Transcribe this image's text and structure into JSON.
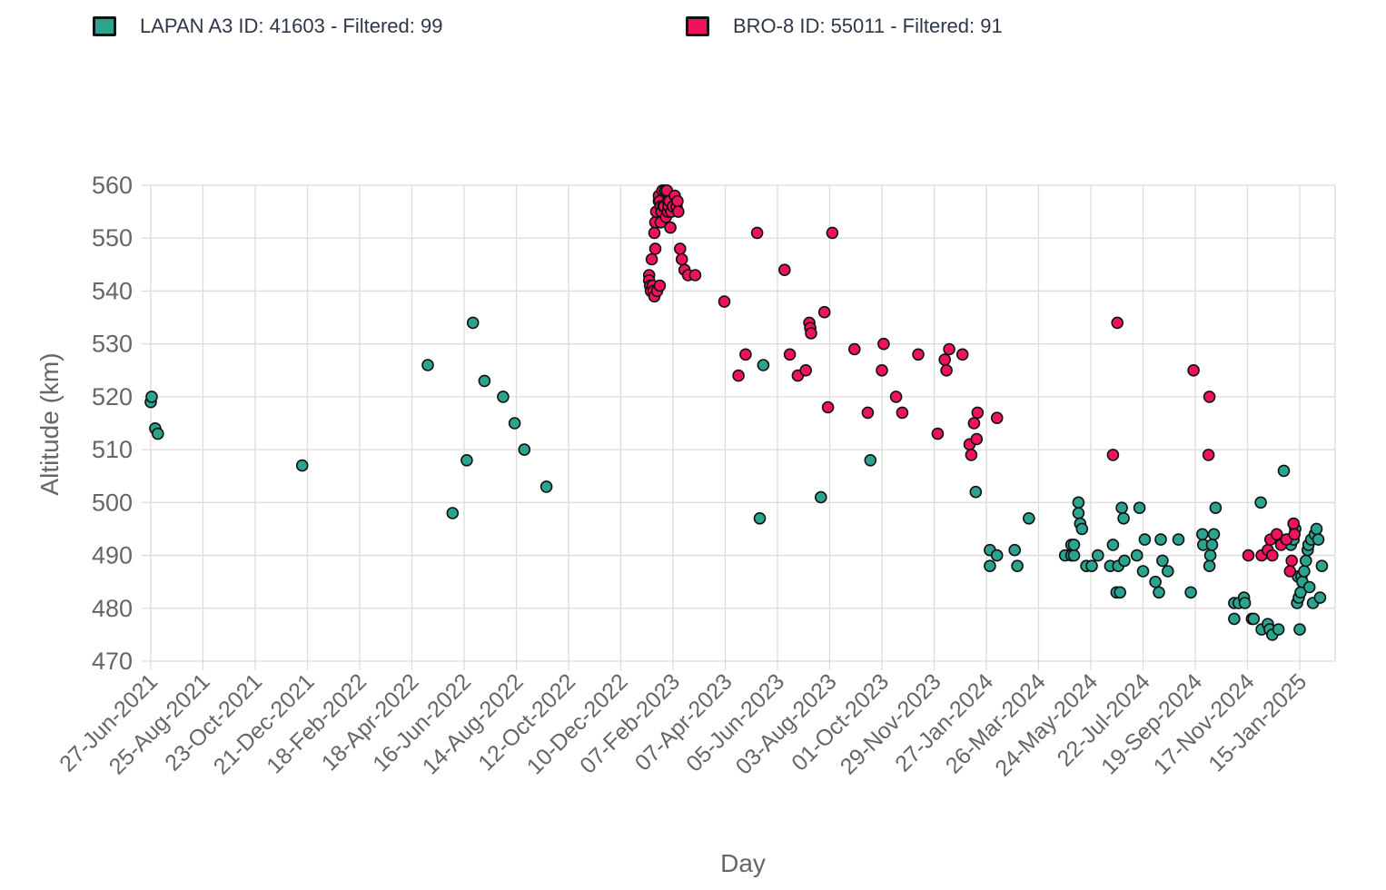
{
  "legend": [
    {
      "label": "LAPAN A3 ID: 41603 - Filtered: 99",
      "color": "#2aa38f"
    },
    {
      "label": "BRO-8 ID: 55011 - Filtered: 91",
      "color": "#f0125d"
    }
  ],
  "chart_data": {
    "type": "scatter",
    "title": "",
    "xlabel": "Day",
    "ylabel": "Altitude (km)",
    "ylim": [
      470,
      560
    ],
    "yticks": [
      470,
      480,
      490,
      500,
      510,
      520,
      530,
      540,
      550,
      560
    ],
    "xticks": [
      "27-Jun-2021",
      "25-Aug-2021",
      "23-Oct-2021",
      "21-Dec-2021",
      "18-Feb-2022",
      "18-Apr-2022",
      "16-Jun-2022",
      "14-Aug-2022",
      "12-Oct-2022",
      "10-Dec-2022",
      "07-Feb-2023",
      "07-Apr-2023",
      "05-Jun-2023",
      "03-Aug-2023",
      "01-Oct-2023",
      "29-Nov-2023",
      "27-Jan-2024",
      "26-Mar-2024",
      "24-May-2024",
      "22-Jul-2024",
      "19-Sep-2024",
      "17-Nov-2024",
      "15-Jan-2025"
    ],
    "xlim": [
      "27-Jun-2021",
      "26-Feb-2025"
    ],
    "grid": true,
    "legend_position": "top",
    "series": [
      {
        "name": "LAPAN A3 ID: 41603 - Filtered: 99",
        "color": "#2aa38f",
        "points": [
          [
            "27-Jun-2021",
            519
          ],
          [
            "28-Jun-2021",
            520
          ],
          [
            "02-Jul-2021",
            514
          ],
          [
            "05-Jul-2021",
            513
          ],
          [
            "15-Dec-2021",
            507
          ],
          [
            "06-May-2022",
            526
          ],
          [
            "03-Jun-2022",
            498
          ],
          [
            "19-Jun-2022",
            508
          ],
          [
            "26-Jun-2022",
            534
          ],
          [
            "09-Jul-2022",
            523
          ],
          [
            "30-Jul-2022",
            520
          ],
          [
            "12-Aug-2022",
            515
          ],
          [
            "23-Aug-2022",
            510
          ],
          [
            "17-Sep-2022",
            503
          ],
          [
            "16-May-2023",
            497
          ],
          [
            "20-May-2023",
            526
          ],
          [
            "24-Jul-2023",
            501
          ],
          [
            "18-Sep-2023",
            508
          ],
          [
            "15-Jan-2024",
            502
          ],
          [
            "31-Jan-2024",
            491
          ],
          [
            "31-Jan-2024",
            488
          ],
          [
            "08-Feb-2024",
            490
          ],
          [
            "28-Feb-2024",
            491
          ],
          [
            "02-Mar-2024",
            488
          ],
          [
            "15-Mar-2024",
            497
          ],
          [
            "25-Apr-2024",
            490
          ],
          [
            "02-May-2024",
            490
          ],
          [
            "02-May-2024",
            492
          ],
          [
            "05-May-2024",
            490
          ],
          [
            "05-May-2024",
            492
          ],
          [
            "10-May-2024",
            498
          ],
          [
            "10-May-2024",
            500
          ],
          [
            "12-May-2024",
            496
          ],
          [
            "14-May-2024",
            495
          ],
          [
            "19-May-2024",
            488
          ],
          [
            "25-May-2024",
            488
          ],
          [
            "01-Jun-2024",
            490
          ],
          [
            "15-Jun-2024",
            488
          ],
          [
            "18-Jun-2024",
            492
          ],
          [
            "22-Jun-2024",
            483
          ],
          [
            "24-Jun-2024",
            488
          ],
          [
            "26-Jun-2024",
            483
          ],
          [
            "28-Jun-2024",
            499
          ],
          [
            "30-Jun-2024",
            497
          ],
          [
            "01-Jul-2024",
            489
          ],
          [
            "15-Jul-2024",
            490
          ],
          [
            "18-Jul-2024",
            499
          ],
          [
            "22-Jul-2024",
            487
          ],
          [
            "24-Jul-2024",
            493
          ],
          [
            "05-Aug-2024",
            485
          ],
          [
            "09-Aug-2024",
            483
          ],
          [
            "11-Aug-2024",
            493
          ],
          [
            "13-Aug-2024",
            489
          ],
          [
            "19-Aug-2024",
            487
          ],
          [
            "31-Aug-2024",
            493
          ],
          [
            "14-Sep-2024",
            483
          ],
          [
            "27-Sep-2024",
            494
          ],
          [
            "28-Sep-2024",
            492
          ],
          [
            "05-Oct-2024",
            488
          ],
          [
            "06-Oct-2024",
            490
          ],
          [
            "08-Oct-2024",
            492
          ],
          [
            "10-Oct-2024",
            494
          ],
          [
            "12-Oct-2024",
            499
          ],
          [
            "02-Nov-2024",
            478
          ],
          [
            "02-Nov-2024",
            481
          ],
          [
            "07-Nov-2024",
            481
          ],
          [
            "13-Nov-2024",
            482
          ],
          [
            "14-Nov-2024",
            481
          ],
          [
            "22-Nov-2024",
            478
          ],
          [
            "24-Nov-2024",
            478
          ],
          [
            "02-Dec-2024",
            500
          ],
          [
            "03-Dec-2024",
            476
          ],
          [
            "10-Dec-2024",
            477
          ],
          [
            "12-Dec-2024",
            476
          ],
          [
            "15-Dec-2024",
            475
          ],
          [
            "22-Dec-2024",
            476
          ],
          [
            "28-Dec-2024",
            506
          ],
          [
            "05-Jan-2025",
            492
          ],
          [
            "08-Jan-2025",
            493
          ],
          [
            "10-Jan-2025",
            495
          ],
          [
            "12-Jan-2025",
            481
          ],
          [
            "13-Jan-2025",
            486
          ],
          [
            "14-Jan-2025",
            482
          ],
          [
            "15-Jan-2025",
            476
          ],
          [
            "16-Jan-2025",
            483
          ],
          [
            "17-Jan-2025",
            486
          ],
          [
            "18-Jan-2025",
            485
          ],
          [
            "20-Jan-2025",
            487
          ],
          [
            "22-Jan-2025",
            489
          ],
          [
            "24-Jan-2025",
            491
          ],
          [
            "25-Jan-2025",
            492
          ],
          [
            "26-Jan-2025",
            484
          ],
          [
            "28-Jan-2025",
            493
          ],
          [
            "30-Jan-2025",
            481
          ],
          [
            "01-Feb-2025",
            494
          ],
          [
            "03-Feb-2025",
            495
          ],
          [
            "05-Feb-2025",
            493
          ],
          [
            "07-Feb-2025",
            482
          ],
          [
            "09-Feb-2025",
            488
          ]
        ]
      },
      {
        "name": "BRO-8 ID: 55011 - Filtered: 91",
        "color": "#f0125d",
        "points": [
          [
            "11-Jan-2023",
            543
          ],
          [
            "11-Jan-2023",
            542
          ],
          [
            "12-Jan-2023",
            541
          ],
          [
            "13-Jan-2023",
            540
          ],
          [
            "14-Jan-2023",
            546
          ],
          [
            "15-Jan-2023",
            541
          ],
          [
            "16-Jan-2023",
            540
          ],
          [
            "17-Jan-2023",
            539
          ],
          [
            "17-Jan-2023",
            551
          ],
          [
            "18-Jan-2023",
            548
          ],
          [
            "18-Jan-2023",
            553
          ],
          [
            "19-Jan-2023",
            555
          ],
          [
            "20-Jan-2023",
            540
          ],
          [
            "22-Jan-2023",
            557
          ],
          [
            "22-Jan-2023",
            558
          ],
          [
            "23-Jan-2023",
            541
          ],
          [
            "23-Jan-2023",
            557
          ],
          [
            "24-Jan-2023",
            556
          ],
          [
            "24-Jan-2023",
            553
          ],
          [
            "25-Jan-2023",
            555
          ],
          [
            "26-Jan-2023",
            559
          ],
          [
            "27-Jan-2023",
            556
          ],
          [
            "28-Jan-2023",
            556
          ],
          [
            "29-Jan-2023",
            559
          ],
          [
            "30-Jan-2023",
            554
          ],
          [
            "31-Jan-2023",
            559
          ],
          [
            "01-Feb-2023",
            555
          ],
          [
            "01-Feb-2023",
            557
          ],
          [
            "02-Feb-2023",
            556
          ],
          [
            "03-Feb-2023",
            557
          ],
          [
            "04-Feb-2023",
            552
          ],
          [
            "05-Feb-2023",
            555
          ],
          [
            "07-Feb-2023",
            556
          ],
          [
            "09-Feb-2023",
            558
          ],
          [
            "11-Feb-2023",
            556
          ],
          [
            "12-Feb-2023",
            557
          ],
          [
            "13-Feb-2023",
            555
          ],
          [
            "15-Feb-2023",
            548
          ],
          [
            "17-Feb-2023",
            546
          ],
          [
            "20-Feb-2023",
            544
          ],
          [
            "24-Feb-2023",
            543
          ],
          [
            "04-Mar-2023",
            543
          ],
          [
            "06-Apr-2023",
            538
          ],
          [
            "22-Apr-2023",
            524
          ],
          [
            "30-Apr-2023",
            528
          ],
          [
            "13-May-2023",
            551
          ],
          [
            "13-Jun-2023",
            544
          ],
          [
            "19-Jun-2023",
            528
          ],
          [
            "28-Jun-2023",
            524
          ],
          [
            "07-Jul-2023",
            525
          ],
          [
            "11-Jul-2023",
            534
          ],
          [
            "12-Jul-2023",
            533
          ],
          [
            "13-Jul-2023",
            532
          ],
          [
            "28-Jul-2023",
            536
          ],
          [
            "01-Aug-2023",
            518
          ],
          [
            "06-Aug-2023",
            551
          ],
          [
            "31-Aug-2023",
            529
          ],
          [
            "15-Sep-2023",
            517
          ],
          [
            "01-Oct-2023",
            525
          ],
          [
            "03-Oct-2023",
            530
          ],
          [
            "17-Oct-2023",
            520
          ],
          [
            "24-Oct-2023",
            517
          ],
          [
            "11-Nov-2023",
            528
          ],
          [
            "03-Dec-2023",
            513
          ],
          [
            "11-Dec-2023",
            527
          ],
          [
            "13-Dec-2023",
            525
          ],
          [
            "16-Dec-2023",
            529
          ],
          [
            "31-Dec-2023",
            528
          ],
          [
            "08-Jan-2024",
            511
          ],
          [
            "10-Jan-2024",
            509
          ],
          [
            "13-Jan-2024",
            515
          ],
          [
            "16-Jan-2024",
            512
          ],
          [
            "17-Jan-2024",
            517
          ],
          [
            "08-Feb-2024",
            516
          ],
          [
            "18-Jun-2024",
            509
          ],
          [
            "23-Jun-2024",
            534
          ],
          [
            "17-Sep-2024",
            525
          ],
          [
            "04-Oct-2024",
            509
          ],
          [
            "05-Oct-2024",
            520
          ],
          [
            "18-Nov-2024",
            490
          ],
          [
            "03-Dec-2024",
            490
          ],
          [
            "10-Dec-2024",
            491
          ],
          [
            "13-Dec-2024",
            493
          ],
          [
            "15-Dec-2024",
            490
          ],
          [
            "20-Dec-2024",
            494
          ],
          [
            "25-Dec-2024",
            492
          ],
          [
            "31-Dec-2024",
            493
          ],
          [
            "04-Jan-2025",
            487
          ],
          [
            "06-Jan-2025",
            489
          ],
          [
            "08-Jan-2025",
            496
          ],
          [
            "09-Jan-2025",
            494
          ]
        ]
      }
    ]
  }
}
